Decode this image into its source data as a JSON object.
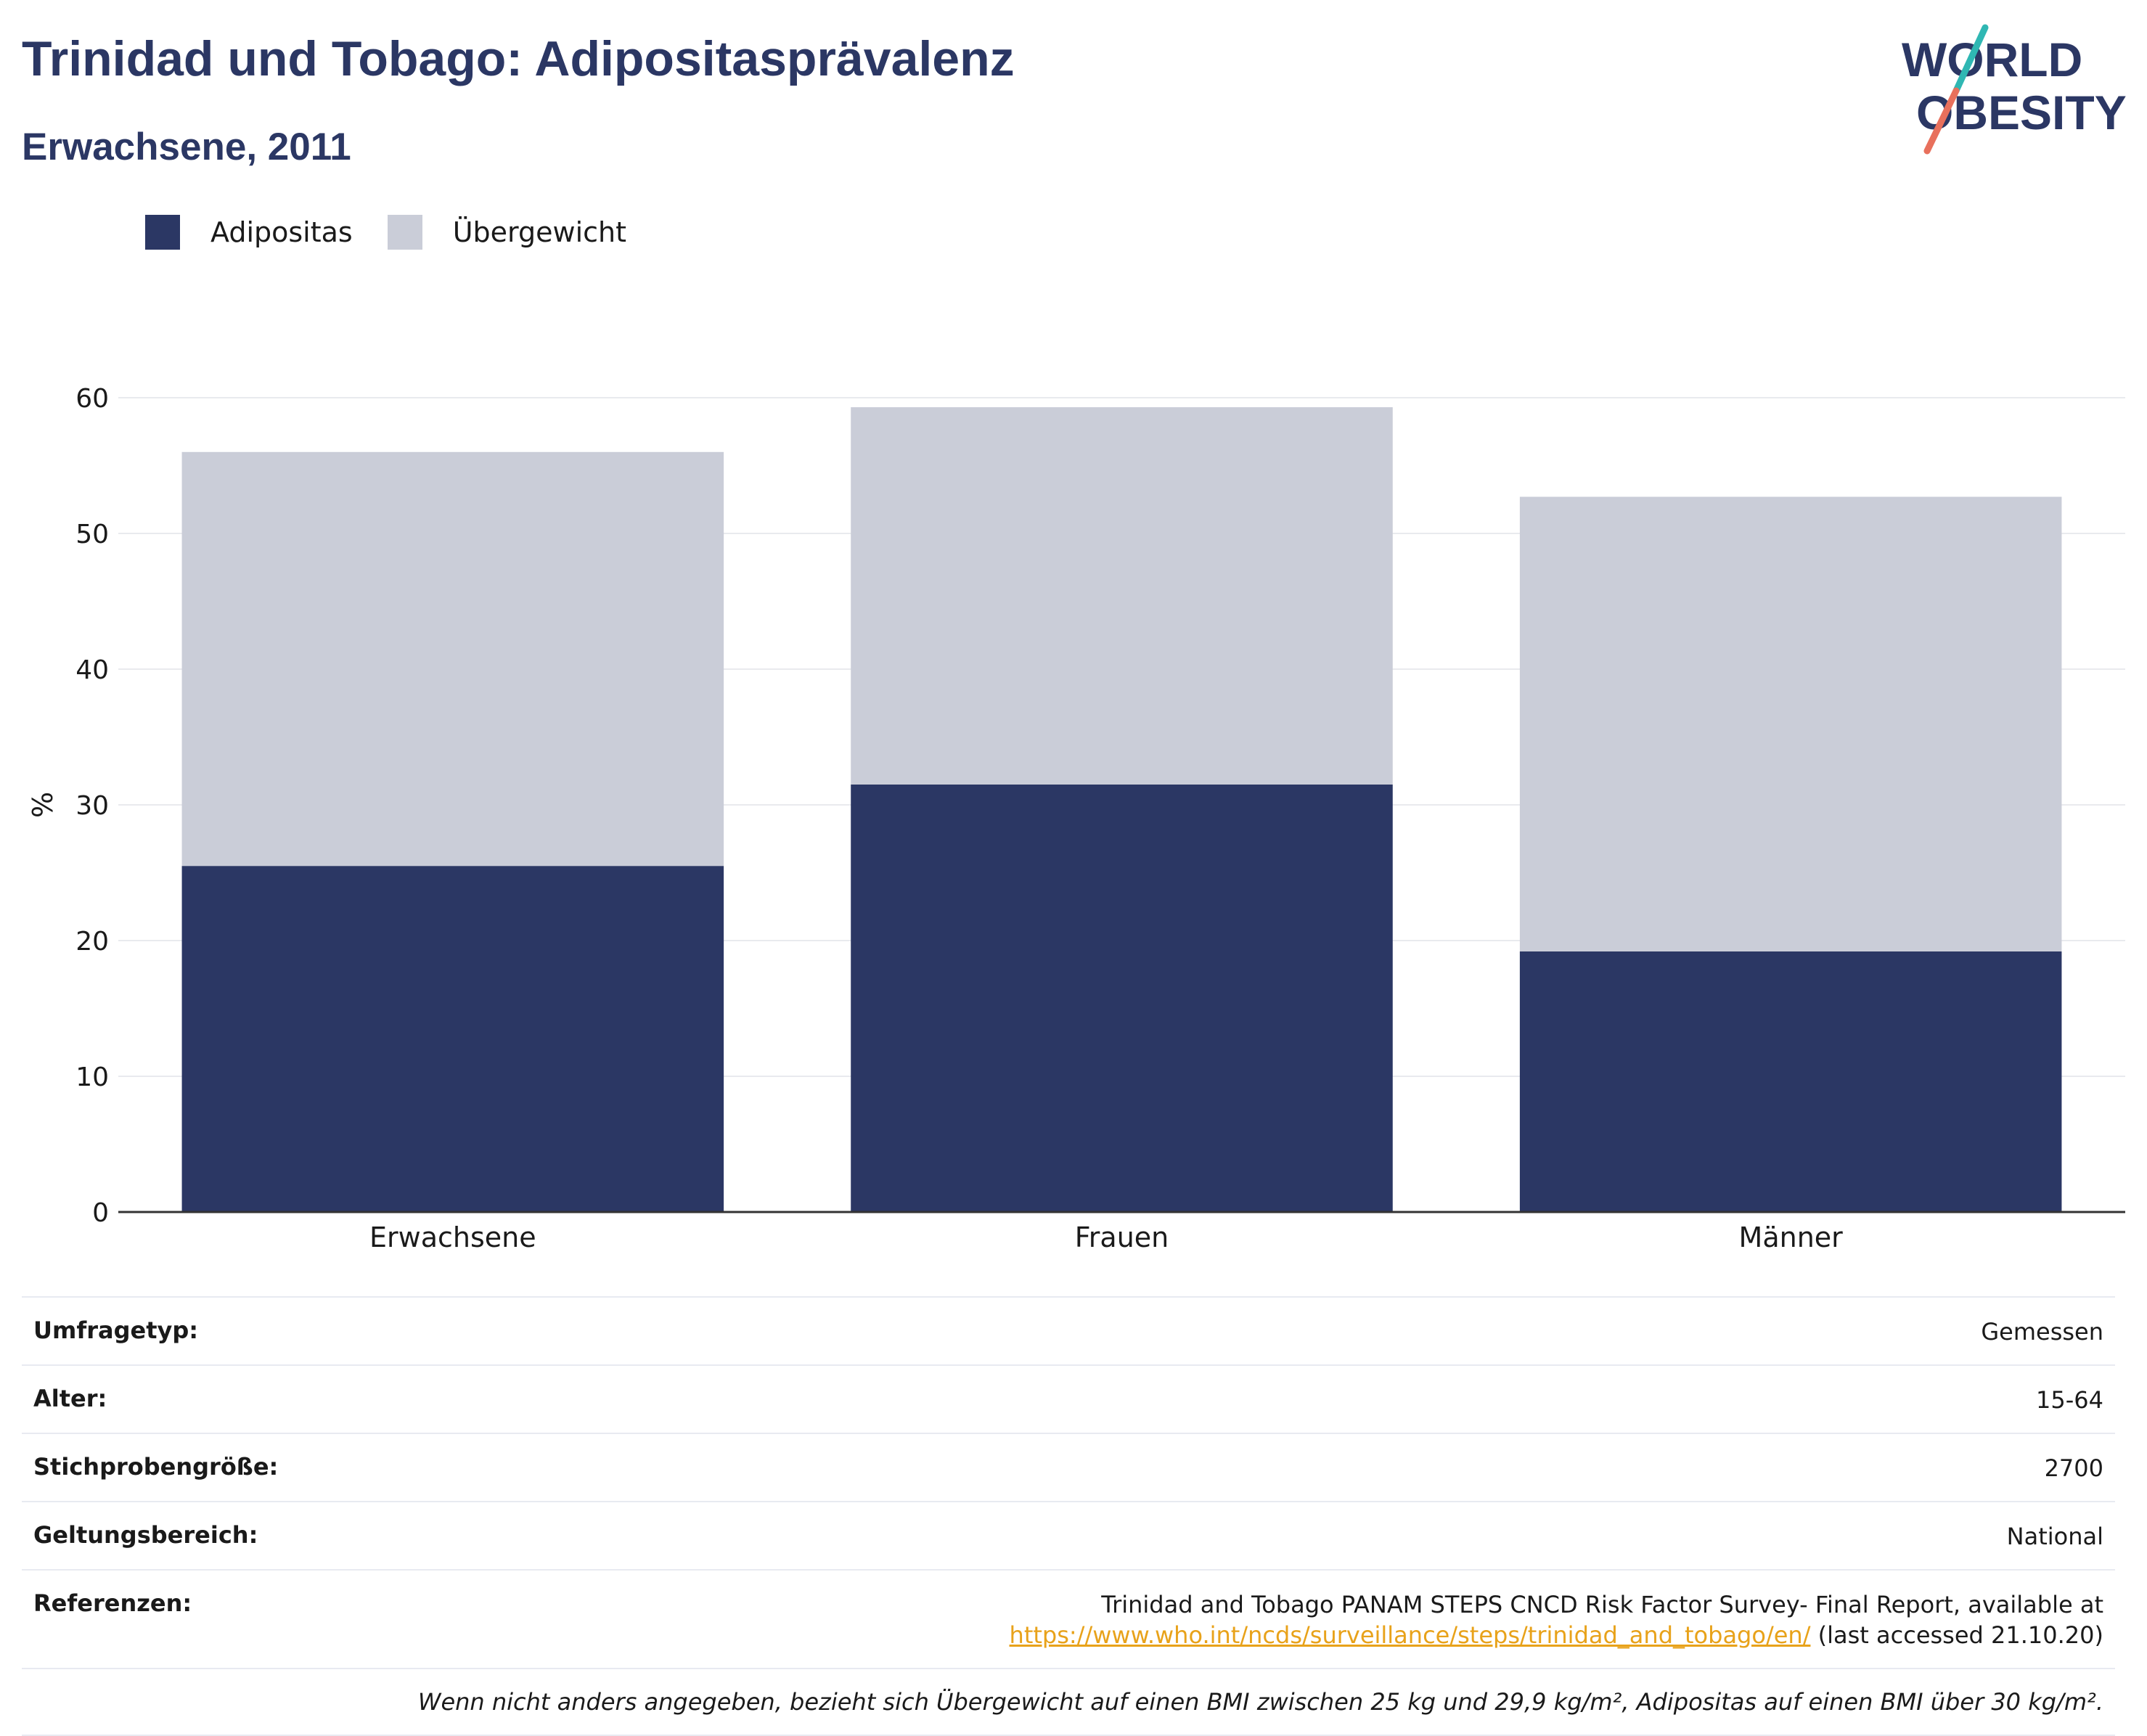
{
  "header": {
    "title": "Trinidad und Tobago: Adipositasprävalenz",
    "subtitle": "Erwachsene, 2011"
  },
  "logo": {
    "line1": "WORLD",
    "line2": "OBESITY",
    "colors": {
      "text": "#2b3764",
      "slash_top": "#2fb7b3",
      "slash_bottom": "#e8705c"
    }
  },
  "legend": [
    {
      "label": "Adipositas",
      "color": "#2b3764"
    },
    {
      "label": "Übergewicht",
      "color": "#cacdd8"
    }
  ],
  "chart_data": {
    "type": "bar",
    "stacked": true,
    "categories": [
      "Erwachsene",
      "Frauen",
      "Männer"
    ],
    "series": [
      {
        "name": "Adipositas",
        "color": "#2b3764",
        "values": [
          25.5,
          31.5,
          19.2
        ]
      },
      {
        "name": "Übergewicht",
        "color": "#cacdd8",
        "values": [
          30.5,
          27.8,
          33.5
        ]
      }
    ],
    "ylabel": "%",
    "ylim": [
      0,
      60
    ],
    "yticks": [
      0,
      10,
      20,
      30,
      40,
      50,
      60
    ],
    "grid": true,
    "legend_position": "top-left"
  },
  "info": {
    "rows": [
      {
        "key": "Umfragetyp:",
        "value": "Gemessen"
      },
      {
        "key": "Alter:",
        "value": "15-64"
      },
      {
        "key": "Stichprobengröße:",
        "value": "2700"
      },
      {
        "key": "Geltungsbereich:",
        "value": "National"
      }
    ],
    "references": {
      "key": "Referenzen:",
      "line1": "Trinidad and Tobago PANAM STEPS CNCD Risk Factor Survey- Final Report, available at",
      "link": "https://www.who.int/ncds/surveillance/steps/trinidad_and_tobago/en/",
      "suffix": " (last accessed 21.10.20)"
    },
    "note": "Wenn nicht anders angegeben, bezieht sich Übergewicht auf einen BMI zwischen 25 kg und 29,9 kg/m², Adipositas auf einen BMI über 30 kg/m²."
  }
}
